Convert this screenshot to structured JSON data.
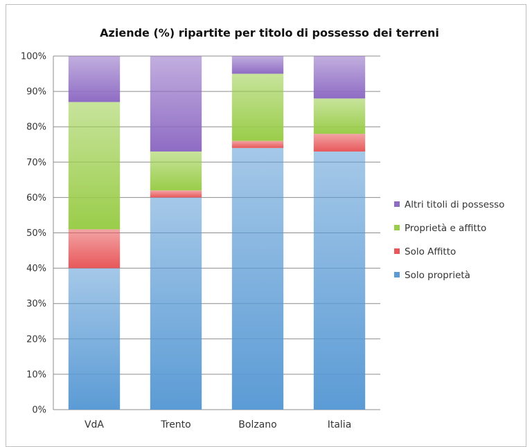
{
  "chart_data": {
    "type": "bar",
    "stacked": true,
    "title": "Aziende (%) ripartite per titolo di possesso dei terreni",
    "categories": [
      "VdA",
      "Trento",
      "Bolzano",
      "Italia"
    ],
    "ylim": [
      0,
      100
    ],
    "y_ticks": [
      "0%",
      "10%",
      "20%",
      "30%",
      "40%",
      "50%",
      "60%",
      "70%",
      "80%",
      "90%",
      "100%"
    ],
    "grid": true,
    "legend_position": "right",
    "series": [
      {
        "name": "Solo proprietà",
        "color": "#5b9bd5",
        "values": [
          40,
          60,
          74,
          73
        ]
      },
      {
        "name": "Solo Affitto",
        "color": "#e8585a",
        "values": [
          11,
          2,
          2,
          5
        ]
      },
      {
        "name": "Proprietà e affitto",
        "color": "#9acd4a",
        "values": [
          36,
          11,
          19,
          10
        ]
      },
      {
        "name": "Altri titoli di possesso",
        "color": "#8f6cc4",
        "values": [
          13,
          27,
          5,
          12
        ]
      }
    ],
    "legend_order": [
      "Altri titoli di possesso",
      "Proprietà e affitto",
      "Solo Affitto",
      "Solo proprietà"
    ]
  }
}
